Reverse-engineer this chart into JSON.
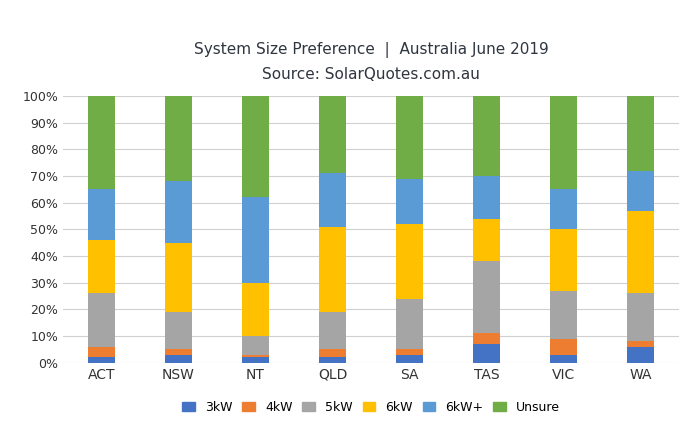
{
  "title_line1": "System Size Preference  |  Australia June 2019",
  "title_line2": "Source: SolarQuotes.com.au",
  "categories": [
    "ACT",
    "NSW",
    "NT",
    "QLD",
    "SA",
    "TAS",
    "VIC",
    "WA"
  ],
  "series": {
    "3kW": [
      2,
      3,
      2,
      2,
      3,
      7,
      3,
      6
    ],
    "4kW": [
      4,
      2,
      1,
      3,
      2,
      4,
      6,
      2
    ],
    "5kW": [
      20,
      14,
      7,
      14,
      19,
      27,
      18,
      18
    ],
    "6kW": [
      20,
      26,
      20,
      32,
      28,
      16,
      23,
      31
    ],
    "6kW+": [
      19,
      23,
      32,
      20,
      17,
      16,
      15,
      15
    ],
    "Unsure": [
      35,
      32,
      38,
      29,
      31,
      30,
      35,
      28
    ]
  },
  "colors": {
    "3kW": "#4472C4",
    "4kW": "#ED7D31",
    "5kW": "#A5A5A5",
    "6kW": "#FFC000",
    "6kW+": "#5B9BD5",
    "Unsure": "#70AD47"
  },
  "ylim": [
    0,
    100
  ],
  "ytick_labels": [
    "0%",
    "10%",
    "20%",
    "30%",
    "40%",
    "50%",
    "60%",
    "70%",
    "80%",
    "90%",
    "100%"
  ],
  "ytick_values": [
    0,
    10,
    20,
    30,
    40,
    50,
    60,
    70,
    80,
    90,
    100
  ],
  "background_color": "#ffffff",
  "grid_color": "#d0d0d0",
  "bar_width": 0.35
}
